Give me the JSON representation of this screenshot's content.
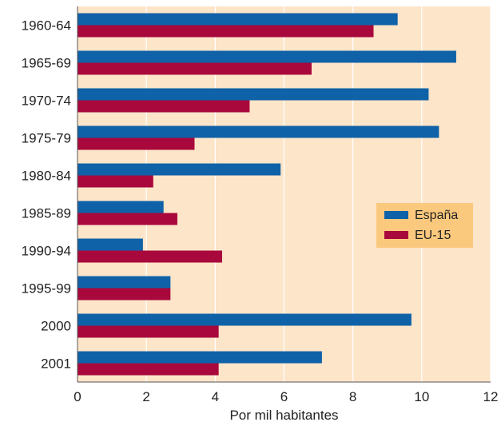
{
  "chart_data": {
    "type": "bar",
    "orientation": "horizontal",
    "categories": [
      "1960-64",
      "1965-69",
      "1970-74",
      "1975-79",
      "1980-84",
      "1985-89",
      "1990-94",
      "1995-99",
      "2000",
      "2001"
    ],
    "series": [
      {
        "name": "España",
        "color": "#0f62a8",
        "values": [
          9.3,
          11.0,
          10.2,
          10.5,
          5.9,
          2.5,
          1.9,
          2.7,
          9.7,
          7.1
        ]
      },
      {
        "name": "EU-15",
        "color": "#a8083c",
        "values": [
          8.6,
          6.8,
          5.0,
          3.4,
          2.2,
          2.9,
          4.2,
          2.7,
          4.1,
          4.1
        ]
      }
    ],
    "xlabel": "Por mil habitantes",
    "xlim": [
      0,
      12
    ],
    "xticks": [
      "0",
      "2",
      "4",
      "6",
      "8",
      "10",
      "12"
    ],
    "grid": "vertical",
    "legend": "right",
    "colors": {
      "plot_background": "#fde5c9",
      "legend_background": "#fbc97e",
      "grid": "#ffffff"
    }
  }
}
